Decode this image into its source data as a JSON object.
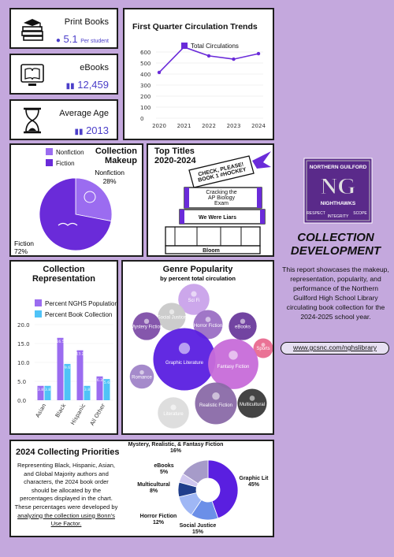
{
  "stats": [
    {
      "label": "Print Books",
      "value": "5.1",
      "unit": "Per student",
      "icon": "books-stack-icon"
    },
    {
      "label": "eBooks",
      "value": "12,459",
      "unit": "",
      "icon": "ebook-reader-icon"
    },
    {
      "label": "Average Age",
      "value": "2013",
      "unit": "",
      "icon": "hourglass-icon"
    }
  ],
  "trends": {
    "title": "First Quarter Circulation Trends",
    "chart_data": {
      "type": "line",
      "title": "First Quarter Circulation Trends",
      "x": [
        "2020",
        "2021",
        "2022",
        "2023",
        "2024"
      ],
      "series": [
        {
          "name": "Total Circulations",
          "values": [
            415,
            645,
            565,
            535,
            585
          ]
        }
      ],
      "ylim": [
        0,
        600
      ],
      "yticks": [
        "600",
        "500",
        "400",
        "300",
        "200",
        "100",
        "0"
      ],
      "legend": "top",
      "color": "#6a2bd9"
    }
  },
  "makeup": {
    "title_line1": "Collection",
    "title_line2": "Makeup",
    "chart_data": {
      "type": "pie",
      "categories": [
        "Nonfiction",
        "Fiction"
      ],
      "values": [
        28,
        72
      ],
      "labels": [
        "Nonfiction 28%",
        "Fiction 72%"
      ],
      "colors": [
        "#9b6cf0",
        "#6a2bd9"
      ]
    },
    "legend": [
      "Nonfiction",
      "Fiction"
    ],
    "nonfiction_label": "Nonfiction",
    "nonfiction_pct": "28%",
    "fiction_label": "Fiction",
    "fiction_pct": "72%"
  },
  "titles": {
    "title_line1": "Top Titles",
    "title_line2": "2020-2024",
    "books": [
      "Check, Please! Book 1 #Hockey",
      "Cracking the AP Biology Exam",
      "We Were Liars",
      "Bloom"
    ]
  },
  "logo": {
    "top_text": "NORTHERN GUILFORD",
    "letters": "NG",
    "bottom_text": "NIGHTHAWKS",
    "words": [
      "RESPECT",
      "INTEGRITY",
      "SCOPE"
    ]
  },
  "intro": {
    "heading_line1": "COLLECTION",
    "heading_line2": "DEVELOPMENT",
    "body": "This report showcases the makeup, representation, popularity, and performance of the Northern Guilford High School Library circulating book collection for the 2024-2025 school year.",
    "link": "www.gcsnc.com/nghslibrary"
  },
  "representation": {
    "title_line1": "Collection",
    "title_line2": "Representation",
    "chart_data": {
      "type": "bar",
      "categories": [
        "Asian",
        "Black",
        "Hispanic",
        "All Other"
      ],
      "series": [
        {
          "name": "Percent NGHS Population",
          "values": [
            3.8,
            16.5,
            13.2,
            6.3
          ],
          "color": "#9b6cf0"
        },
        {
          "name": "Percent Book Collection",
          "values": [
            3.8,
            9.6,
            3.8,
            5.6
          ],
          "color": "#4fc3f7"
        }
      ],
      "data_labels": [
        [
          "3.8",
          "16.5",
          "13.2",
          "6.3"
        ],
        [
          "3.8",
          "9.6",
          "3.8",
          "5.6"
        ]
      ],
      "ylim": [
        0,
        20
      ],
      "yticks": [
        "20.0",
        "15.0",
        "10.0",
        "5.0",
        "0.0"
      ],
      "legend": "top"
    }
  },
  "genre": {
    "title": "Genre Popularity",
    "subtitle": "by percent total circulation",
    "chart_data": {
      "type": "bubble",
      "bubbles": [
        {
          "name": "Sci Fi",
          "weight": 2.5,
          "color": "#c9a2ea",
          "icon": "ufo-icon"
        },
        {
          "name": "Social Justice",
          "weight": 2.0,
          "color": "#c9c9c9",
          "icon": "fist-icon"
        },
        {
          "name": "Mystery Fiction",
          "weight": 2.0,
          "color": "#7e4ea8",
          "icon": "magnifier-icon"
        },
        {
          "name": "Horror Fiction",
          "weight": 2.2,
          "color": "#9b6fc4",
          "icon": "hand-icon"
        },
        {
          "name": "eBooks",
          "weight": 2.0,
          "color": "#6a3a9c",
          "icon": "tablet-icon"
        },
        {
          "name": "Sports",
          "weight": 1.0,
          "color": "#e96a8f",
          "icon": "ball-icon"
        },
        {
          "name": "Graphic Literature",
          "weight": 10,
          "color": "#5a1fe0",
          "icon": "speech-bubble-icon"
        },
        {
          "name": "Fantasy Fiction",
          "weight": 6.5,
          "color": "#c76bd9",
          "icon": "unicorn-icon"
        },
        {
          "name": "Romance",
          "weight": 1.5,
          "color": "#a084c8",
          "icon": "heart-icon"
        },
        {
          "name": "Realistic Fiction",
          "weight": 4.5,
          "color": "#8a6aa8",
          "icon": "person-icon"
        },
        {
          "name": "Multicultural",
          "weight": 2.2,
          "color": "#3a3a3a",
          "icon": "people-icon"
        },
        {
          "name": "Literature",
          "weight": 2.5,
          "color": "#dcdcdc",
          "icon": "quill-icon"
        }
      ]
    }
  },
  "priorities": {
    "title": "2024 Collecting Priorities",
    "body_prefix": "Representing Black, Hispanic, Asian, and Global Majority authors and characters, the 2024 book order should be allocated by the percentages displayed in the chart. These percentages were developed by",
    "body_link": "analyzing the collection using Bonn's Use Factor.",
    "chart_data": {
      "type": "pie",
      "categories": [
        "Graphic Lit",
        "Social Justice",
        "Horror Fiction",
        "Multicultural",
        "eBooks",
        "Mystery, Realistic, & Fantasy Fiction"
      ],
      "values": [
        45,
        15,
        12,
        8,
        5,
        16
      ],
      "colors": [
        "#5a1fe0",
        "#6b8fe8",
        "#9fb7f5",
        "#1f3d8c",
        "#cfc6ef",
        "#a69bc9"
      ]
    },
    "labels": [
      {
        "name": "Mystery, Realistic, & Fantasy Fiction",
        "pct": "16%"
      },
      {
        "name": "eBooks",
        "pct": "5%"
      },
      {
        "name": "Multicultural",
        "pct": "8%"
      },
      {
        "name": "Horror Fiction",
        "pct": "12%"
      },
      {
        "name": "Social Justice",
        "pct": "15%"
      },
      {
        "name": "Graphic Lit",
        "pct": "45%"
      }
    ]
  }
}
